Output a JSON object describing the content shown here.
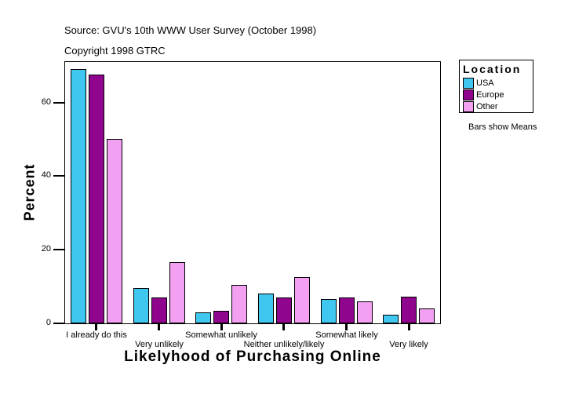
{
  "header": {
    "source": "Source: GVU's 10th WWW User Survey (October 1998)",
    "copyright": "Copyright 1998 GTRC"
  },
  "chart_data": {
    "type": "bar",
    "title": "Likelyhood of Purchasing Online",
    "xlabel": "Likelyhood of Purchasing Online",
    "ylabel": "Percent",
    "categories": [
      "I already do this",
      "Very unlikely",
      "Somewhat unlikely",
      "Neither unlikely/likely",
      "Somewhat likely",
      "Very likely"
    ],
    "series": [
      {
        "name": "USA",
        "color": "#3fc7f0",
        "values": [
          69,
          9.6,
          3,
          8.2,
          6.6,
          2.3
        ]
      },
      {
        "name": "Europe",
        "color": "#90058e",
        "values": [
          67.5,
          7.1,
          3.5,
          7.1,
          7.1,
          7.2
        ]
      },
      {
        "name": "Other",
        "color": "#f3a0f2",
        "values": [
          50,
          16.6,
          10.4,
          12.5,
          6,
          4
        ]
      }
    ],
    "yticks": [
      0,
      20,
      40,
      60
    ],
    "ylim": [
      0,
      71
    ],
    "grid": false,
    "bar_outline_color": "#000000",
    "legend_title": "Location",
    "legend_position": "outside-top-right",
    "note": "Bars show Means"
  }
}
